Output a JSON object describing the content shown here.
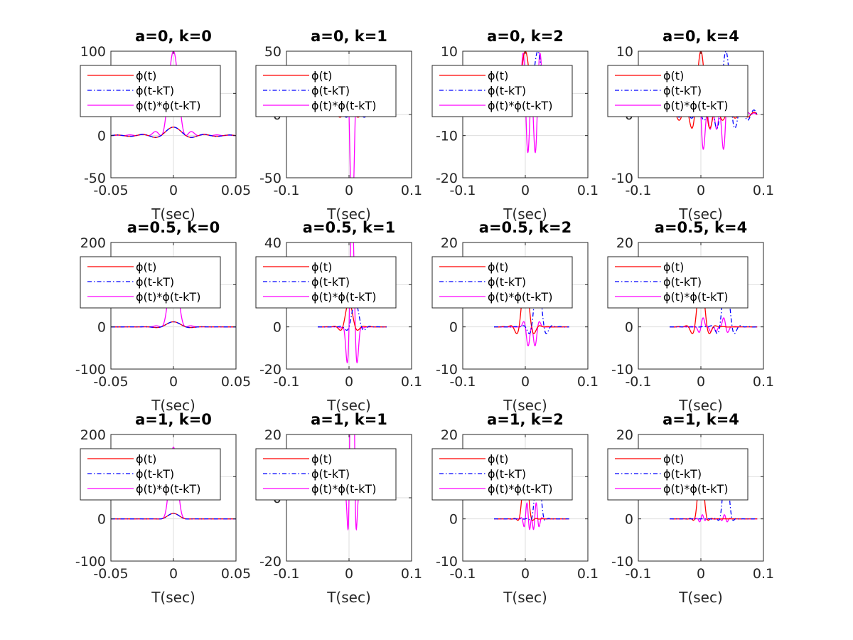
{
  "colors": {
    "phi": "#ff0000",
    "phi_shift": "#0000ff",
    "product": "#ff00ff",
    "grid": "#dedede",
    "axis": "#262626"
  },
  "chart_data": [
    {
      "type": "line",
      "title": "a=0, k=0",
      "a": 0,
      "k": 0,
      "xlabel": "T(sec)",
      "xlim": [
        -0.05,
        0.05
      ],
      "ylim": [
        -50,
        100
      ],
      "xticks": [
        "-0.05",
        "0",
        "0.05"
      ],
      "yticks": [
        "-50",
        "0",
        "50",
        "100"
      ],
      "peak_phi": 10,
      "peak_product": 100,
      "shift_sec": 0,
      "legend": [
        "ϕ(t)",
        "ϕ(t-kT)",
        "ϕ(t)*ϕ(t-kT)"
      ],
      "grid": true
    },
    {
      "type": "line",
      "title": "a=0, k=1",
      "a": 0,
      "k": 1,
      "xlabel": "T(sec)",
      "xlim": [
        -0.1,
        0.1
      ],
      "ylim": [
        -50,
        50
      ],
      "xticks": [
        "-0.1",
        "0",
        "0.1"
      ],
      "yticks": [
        "-50",
        "0",
        "50"
      ],
      "peak_phi": 10,
      "peak_product": 35,
      "shift_sec": 0.01,
      "legend": [
        "ϕ(t)",
        "ϕ(t-kT)",
        "ϕ(t)*ϕ(t-kT)"
      ],
      "grid": true
    },
    {
      "type": "line",
      "title": "a=0, k=2",
      "a": 0,
      "k": 2,
      "xlabel": "T(sec)",
      "xlim": [
        -0.1,
        0.1
      ],
      "ylim": [
        -20,
        10
      ],
      "xticks": [
        "-0.1",
        "0",
        "0.1"
      ],
      "yticks": [
        "-20",
        "-10",
        "0",
        "10"
      ],
      "peak_phi": 10,
      "peak_product": -14,
      "shift_sec": 0.02,
      "legend": [
        "ϕ(t)",
        "ϕ(t-kT)",
        "ϕ(t)*ϕ(t-kT)"
      ],
      "grid": true
    },
    {
      "type": "line",
      "title": "a=0, k=4",
      "a": 0,
      "k": 4,
      "xlabel": "T(sec)",
      "xlim": [
        -0.1,
        0.1
      ],
      "ylim": [
        -10,
        10
      ],
      "xticks": [
        "-0.1",
        "0",
        "0.1"
      ],
      "yticks": [
        "-10",
        "0",
        "10"
      ],
      "peak_phi": 10,
      "peak_product": -5.5,
      "shift_sec": 0.04,
      "legend": [
        "ϕ(t)",
        "ϕ(t-kT)",
        "ϕ(t)*ϕ(t-kT)"
      ],
      "grid": true
    },
    {
      "type": "line",
      "title": "a=0.5, k=0",
      "a": 0.5,
      "k": 0,
      "xlabel": "T(sec)",
      "xlim": [
        -0.05,
        0.05
      ],
      "ylim": [
        -100,
        200
      ],
      "xticks": [
        "-0.05",
        "0",
        "0.05"
      ],
      "yticks": [
        "-100",
        "0",
        "100",
        "200"
      ],
      "peak_phi": 12,
      "peak_product": 150,
      "shift_sec": 0,
      "legend": [
        "ϕ(t)",
        "ϕ(t-kT)",
        "ϕ(t)*ϕ(t-kT)"
      ],
      "grid": true
    },
    {
      "type": "line",
      "title": "a=0.5, k=1",
      "a": 0.5,
      "k": 1,
      "xlabel": "T(sec)",
      "xlim": [
        -0.1,
        0.1
      ],
      "ylim": [
        -20,
        40
      ],
      "xticks": [
        "-0.1",
        "0",
        "0.1"
      ],
      "yticks": [
        "-20",
        "0",
        "20",
        "40"
      ],
      "peak_phi": 12,
      "peak_product": -17,
      "shift_sec": 0.01,
      "legend": [
        "ϕ(t)",
        "ϕ(t-kT)",
        "ϕ(t)*ϕ(t-kT)"
      ],
      "grid": true
    },
    {
      "type": "line",
      "title": "a=0.5, k=2",
      "a": 0.5,
      "k": 2,
      "xlabel": "T(sec)",
      "xlim": [
        -0.1,
        0.1
      ],
      "ylim": [
        -10,
        20
      ],
      "xticks": [
        "-0.1",
        "0",
        "0.1"
      ],
      "yticks": [
        "-10",
        "0",
        "10",
        "20"
      ],
      "peak_phi": 12,
      "peak_product": -4.5,
      "shift_sec": 0.02,
      "legend": [
        "ϕ(t)",
        "ϕ(t-kT)",
        "ϕ(t)*ϕ(t-kT)"
      ],
      "grid": true
    },
    {
      "type": "line",
      "title": "a=0.5, k=4",
      "a": 0.5,
      "k": 4,
      "xlabel": "T(sec)",
      "xlim": [
        -0.1,
        0.1
      ],
      "ylim": [
        -10,
        20
      ],
      "xticks": [
        "-0.1",
        "0",
        "0.1"
      ],
      "yticks": [
        "-10",
        "0",
        "10",
        "20"
      ],
      "peak_phi": 12,
      "peak_product": -1.3,
      "shift_sec": 0.04,
      "legend": [
        "ϕ(t)",
        "ϕ(t-kT)",
        "ϕ(t)*ϕ(t-kT)"
      ],
      "grid": true
    },
    {
      "type": "line",
      "title": "a=1, k=0",
      "a": 1,
      "k": 0,
      "xlabel": "T(sec)",
      "xlim": [
        -0.05,
        0.05
      ],
      "ylim": [
        -100,
        200
      ],
      "xticks": [
        "-0.05",
        "0",
        "0.05"
      ],
      "yticks": [
        "-100",
        "0",
        "100",
        "200"
      ],
      "peak_phi": 13,
      "peak_product": 170,
      "shift_sec": 0,
      "legend": [
        "ϕ(t)",
        "ϕ(t-kT)",
        "ϕ(t)*ϕ(t-kT)"
      ],
      "grid": true
    },
    {
      "type": "line",
      "title": "a=1, k=1",
      "a": 1,
      "k": 1,
      "xlabel": "T(sec)",
      "xlim": [
        -0.1,
        0.1
      ],
      "ylim": [
        -20,
        20
      ],
      "xticks": [
        "-0.1",
        "0",
        "0.1"
      ],
      "yticks": [
        "-20",
        "0",
        "20"
      ],
      "peak_phi": 13,
      "peak_product": -10,
      "shift_sec": 0.01,
      "legend": [
        "ϕ(t)",
        "ϕ(t-kT)",
        "ϕ(t)*ϕ(t-kT)"
      ],
      "grid": true
    },
    {
      "type": "line",
      "title": "a=1, k=2",
      "a": 1,
      "k": 2,
      "xlabel": "T(sec)",
      "xlim": [
        -0.1,
        0.1
      ],
      "ylim": [
        -10,
        20
      ],
      "xticks": [
        "-0.1",
        "0",
        "0.1"
      ],
      "yticks": [
        "-10",
        "0",
        "10",
        "20"
      ],
      "peak_phi": 13,
      "peak_product": -2.5,
      "shift_sec": 0.02,
      "legend": [
        "ϕ(t)",
        "ϕ(t-kT)",
        "ϕ(t)*ϕ(t-kT)"
      ],
      "grid": true
    },
    {
      "type": "line",
      "title": "a=1, k=4",
      "a": 1,
      "k": 4,
      "xlabel": "T(sec)",
      "xlim": [
        -0.1,
        0.1
      ],
      "ylim": [
        -10,
        20
      ],
      "xticks": [
        "-0.1",
        "0",
        "0.1"
      ],
      "yticks": [
        "-10",
        "0",
        "10",
        "20"
      ],
      "peak_phi": 13,
      "peak_product": -0.7,
      "shift_sec": 0.04,
      "legend": [
        "ϕ(t)",
        "ϕ(t-kT)",
        "ϕ(t)*ϕ(t-kT)"
      ],
      "grid": true
    }
  ]
}
